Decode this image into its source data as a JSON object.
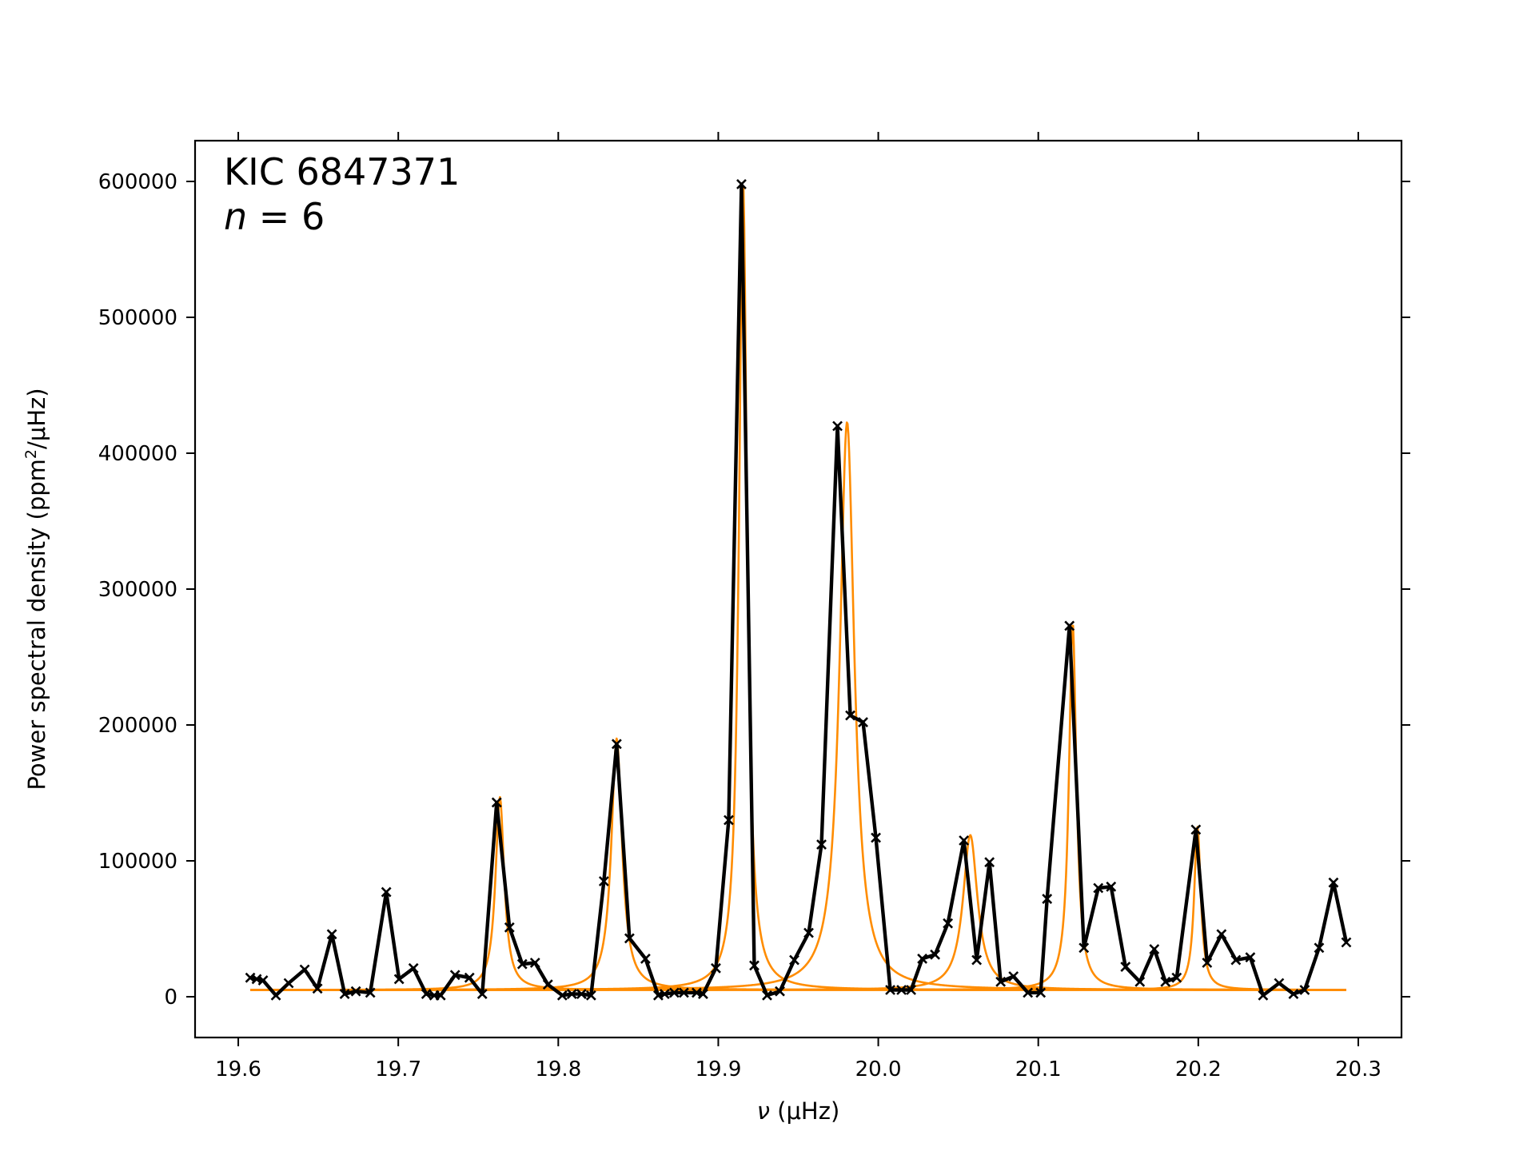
{
  "chart_data": {
    "type": "line",
    "title": "",
    "annotation_line1": "KIC 6847371",
    "annotation_line2_var": "n",
    "annotation_line2_rest": " = 6",
    "xlabel_symbol": "ν",
    "xlabel_unit": " (μHz)",
    "ylabel_main": "Power spectral density (ppm",
    "ylabel_sup": "2",
    "ylabel_tail": "/μHz)",
    "xlim": [
      19.573,
      20.327
    ],
    "ylim": [
      -30000,
      630000
    ],
    "x_ticks": [
      "19.6",
      "19.7",
      "19.8",
      "19.9",
      "20.0",
      "20.1",
      "20.2",
      "20.3"
    ],
    "y_ticks": [
      "0",
      "100000",
      "200000",
      "300000",
      "400000",
      "500000",
      "600000"
    ],
    "grid": false,
    "legend": "none",
    "series": [
      {
        "role": "observed",
        "color": "#000000",
        "marker": "x",
        "x": [
          19.6075,
          19.6115,
          19.6155,
          19.6235,
          19.6315,
          19.6415,
          19.6495,
          19.6585,
          19.6665,
          19.6735,
          19.6825,
          19.6925,
          19.7005,
          19.7095,
          19.7175,
          19.7225,
          19.7265,
          19.7355,
          19.7445,
          19.7525,
          19.7615,
          19.7695,
          19.7775,
          19.7855,
          19.7935,
          19.8025,
          19.8085,
          19.8145,
          19.8205,
          19.8285,
          19.8365,
          19.8445,
          19.8545,
          19.8625,
          19.8665,
          19.8725,
          19.8785,
          19.8865,
          19.8905,
          19.8985,
          19.9065,
          19.9145,
          19.9225,
          19.9305,
          19.9385,
          19.9475,
          19.9565,
          19.9645,
          19.9745,
          19.9825,
          19.9905,
          19.9985,
          20.0075,
          20.0145,
          20.0205,
          20.0275,
          20.0355,
          20.0435,
          20.0535,
          20.0615,
          20.0695,
          20.0765,
          20.0845,
          20.0935,
          20.1015,
          20.1055,
          20.1195,
          20.1285,
          20.1375,
          20.1455,
          20.1545,
          20.1635,
          20.1725,
          20.1795,
          20.1865,
          20.1985,
          20.2055,
          20.2145,
          20.2235,
          20.2325,
          20.2405,
          20.2505,
          20.2595,
          20.2665,
          20.2755,
          20.2845,
          20.2925
        ],
        "y": [
          14000,
          13000,
          12000,
          1000,
          10000,
          20000,
          6000,
          46000,
          2000,
          4000,
          3000,
          77000,
          13000,
          21000,
          2000,
          1000,
          1000,
          16000,
          14000,
          2000,
          143000,
          51000,
          24000,
          25000,
          9000,
          1000,
          2000,
          2000,
          1000,
          85000,
          186000,
          43000,
          28000,
          1000,
          2000,
          3000,
          3000,
          3000,
          2000,
          21000,
          130000,
          598000,
          23000,
          1000,
          4000,
          27000,
          47000,
          112000,
          420000,
          207000,
          202000,
          117000,
          5000,
          5000,
          5000,
          28000,
          31000,
          54000,
          115000,
          27000,
          99000,
          11000,
          15000,
          3000,
          3000,
          72000,
          273000,
          36000,
          80000,
          81000,
          22000,
          11000,
          35000,
          11000,
          14000,
          123000,
          25000,
          46000,
          27000,
          29000,
          1000,
          10000,
          2000,
          5000,
          36000,
          84000,
          40000
        ]
      },
      {
        "role": "lorentzian-fit",
        "color": "#ff8c00",
        "x_range": [
          19.6075,
          20.2925
        ],
        "baseline": 5000,
        "peaks": [
          {
            "x0": 19.7635,
            "height": 142000,
            "hwhm": 0.0033
          },
          {
            "x0": 19.8365,
            "height": 185000,
            "hwhm": 0.004
          },
          {
            "x0": 19.9155,
            "height": 595000,
            "hwhm": 0.003
          },
          {
            "x0": 19.9805,
            "height": 418000,
            "hwhm": 0.0055
          },
          {
            "x0": 20.0575,
            "height": 114000,
            "hwhm": 0.0055
          },
          {
            "x0": 20.1215,
            "height": 270000,
            "hwhm": 0.0028
          },
          {
            "x0": 20.1995,
            "height": 120000,
            "hwhm": 0.0025
          }
        ]
      }
    ]
  }
}
